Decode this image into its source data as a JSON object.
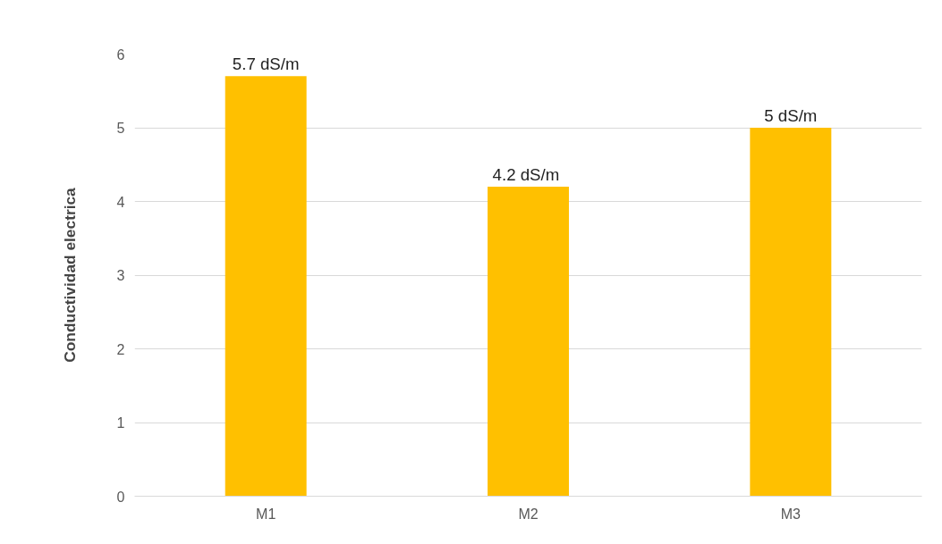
{
  "chart_data": {
    "type": "bar",
    "ylabel": "Conductividad electrica",
    "categories": [
      "M1",
      "M2",
      "M3"
    ],
    "values": [
      5.7,
      4.2,
      5
    ],
    "color": "#ffc000",
    "value_labels": [
      "5.7 dS/m",
      "4.2  dS/m",
      "5 dS/m"
    ],
    "ylim": [
      0,
      6
    ],
    "yticks": [
      0,
      1,
      2,
      3,
      4,
      5,
      6
    ],
    "grid": "y"
  }
}
